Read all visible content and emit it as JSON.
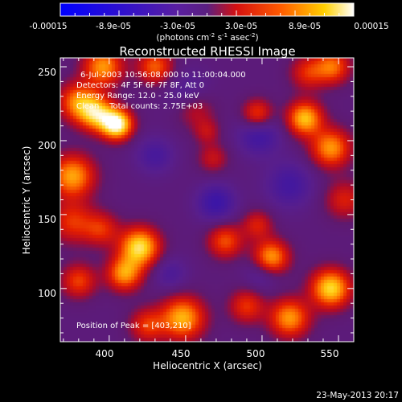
{
  "chart_data": {
    "type": "heatmap",
    "title": "Reconstructed RHESSI Image",
    "xlabel": "Heliocentric X (arcsec)",
    "ylabel": "Heliocentric Y (arcsec)",
    "xlim": [
      368,
      560
    ],
    "ylim": [
      64,
      256
    ],
    "x_ticks": [
      "400",
      "450",
      "500",
      "550"
    ],
    "y_ticks": [
      "100",
      "150",
      "200",
      "250"
    ],
    "colorbar": {
      "min": -0.00015,
      "max": 0.00015,
      "tick_labels": [
        "-0.00015",
        "-8.9e-05",
        "-3.0e-05",
        "3.0e-05",
        "8.9e-05",
        "0.00015"
      ],
      "units_main": "(photons cm",
      "units_sup1": "-2",
      "units_mid1": " s",
      "units_sup2": "-1",
      "units_mid2": " asec",
      "units_sup3": "-2",
      "units_end": ")"
    },
    "annotations": {
      "time_range": "6-Jul-2003 10:56:08.000 to 11:00:04.000",
      "detectors": "Detectors: 4F 5F 6F 7F 8F, Att 0",
      "energy": "Energy Range: 12.0 - 25.0 keV",
      "clean": "Clean    Total counts: 2.75E+03",
      "peak": "Position of Peak = [403,210]"
    },
    "date_stamp": "23-May-2013 20:17",
    "sources": [
      {
        "x": 405,
        "y": 211,
        "amp": 1.5,
        "s": 7
      },
      {
        "x": 392,
        "y": 218,
        "amp": 1.05,
        "s": 8
      },
      {
        "x": 380,
        "y": 226,
        "amp": 0.9,
        "s": 9
      },
      {
        "x": 396,
        "y": 250,
        "amp": 0.95,
        "s": 9
      },
      {
        "x": 430,
        "y": 250,
        "amp": 0.75,
        "s": 8
      },
      {
        "x": 456,
        "y": 222,
        "amp": 0.45,
        "s": 9
      },
      {
        "x": 376,
        "y": 176,
        "amp": 1.0,
        "s": 10
      },
      {
        "x": 376,
        "y": 145,
        "amp": 0.6,
        "s": 10
      },
      {
        "x": 395,
        "y": 140,
        "amp": 0.55,
        "s": 8
      },
      {
        "x": 420,
        "y": 128,
        "amp": 1.25,
        "s": 9
      },
      {
        "x": 410,
        "y": 110,
        "amp": 0.95,
        "s": 8
      },
      {
        "x": 380,
        "y": 105,
        "amp": 0.65,
        "s": 8
      },
      {
        "x": 448,
        "y": 80,
        "amp": 1.05,
        "s": 10
      },
      {
        "x": 425,
        "y": 75,
        "amp": 0.6,
        "s": 8
      },
      {
        "x": 476,
        "y": 132,
        "amp": 0.7,
        "s": 8
      },
      {
        "x": 497,
        "y": 143,
        "amp": 0.5,
        "s": 7
      },
      {
        "x": 506,
        "y": 121,
        "amp": 1.0,
        "s": 8
      },
      {
        "x": 468,
        "y": 188,
        "amp": 0.4,
        "s": 7
      },
      {
        "x": 497,
        "y": 218,
        "amp": 0.7,
        "s": 7
      },
      {
        "x": 528,
        "y": 215,
        "amp": 1.1,
        "s": 8
      },
      {
        "x": 545,
        "y": 195,
        "amp": 0.95,
        "s": 9
      },
      {
        "x": 554,
        "y": 160,
        "amp": 0.5,
        "s": 9
      },
      {
        "x": 545,
        "y": 100,
        "amp": 1.2,
        "s": 9
      },
      {
        "x": 518,
        "y": 80,
        "amp": 0.95,
        "s": 9
      },
      {
        "x": 490,
        "y": 88,
        "amp": 0.6,
        "s": 8
      },
      {
        "x": 530,
        "y": 246,
        "amp": 0.55,
        "s": 8
      },
      {
        "x": 546,
        "y": 250,
        "amp": 0.8,
        "s": 8
      },
      {
        "x": 464,
        "y": 206,
        "amp": 0.35,
        "s": 6
      },
      {
        "x": 498,
        "y": 204,
        "amp": -0.45,
        "s": 10
      },
      {
        "x": 470,
        "y": 158,
        "amp": -0.5,
        "s": 9
      },
      {
        "x": 518,
        "y": 170,
        "amp": -0.4,
        "s": 11
      },
      {
        "x": 452,
        "y": 232,
        "amp": -0.35,
        "s": 10
      },
      {
        "x": 430,
        "y": 190,
        "amp": -0.35,
        "s": 9
      },
      {
        "x": 500,
        "y": 110,
        "amp": -0.3,
        "s": 8
      },
      {
        "x": 440,
        "y": 110,
        "amp": -0.3,
        "s": 8
      }
    ]
  }
}
